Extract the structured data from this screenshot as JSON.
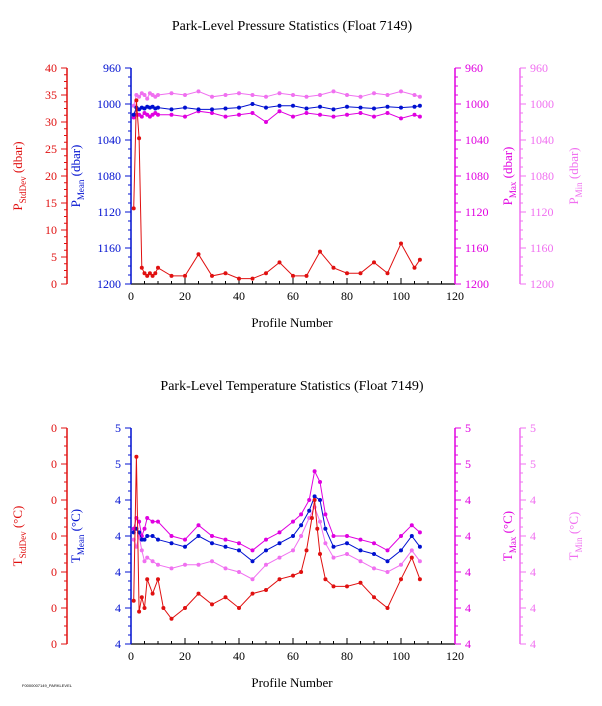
{
  "colors": {
    "stddev": "#e01010",
    "mean": "#0010d0",
    "max": "#e000e0",
    "min": "#f070f0",
    "axis": "#000000"
  },
  "footer": "F0000007149_PARKLEVEL",
  "chart_data": [
    {
      "type": "line",
      "title": "Park-Level Pressure Statistics (Float 7149)",
      "xlabel": "Profile Number",
      "xlim": [
        0,
        120
      ],
      "xticks": [
        "0",
        "20",
        "40",
        "60",
        "80",
        "100",
        "120"
      ],
      "axes": {
        "stddev": {
          "label_main": "P",
          "label_sub": "StdDev",
          "label_unit": " (dbar)",
          "lim": [
            0,
            40
          ],
          "ticks": [
            "0",
            "5",
            "10",
            "15",
            "20",
            "25",
            "30",
            "35",
            "40"
          ]
        },
        "mean": {
          "label_main": "P",
          "label_sub": "Mean",
          "label_unit": " (dbar)",
          "lim": [
            1200,
            960
          ],
          "ticks": [
            "1200",
            "1160",
            "1120",
            "1080",
            "1040",
            "1000",
            "960"
          ]
        },
        "max": {
          "label_main": "P",
          "label_sub": "Max",
          "label_unit": " (dbar)",
          "lim": [
            1200,
            960
          ],
          "ticks": [
            "1200",
            "1160",
            "1120",
            "1080",
            "1040",
            "1000",
            "960"
          ]
        },
        "min": {
          "label_main": "P",
          "label_sub": "Min",
          "label_unit": " (dbar)",
          "lim": [
            1200,
            960
          ],
          "ticks": [
            "1200",
            "1160",
            "1120",
            "1080",
            "1040",
            "1000",
            "960"
          ]
        }
      },
      "series": [
        {
          "key": "min",
          "x": [
            1,
            2,
            3,
            4,
            5,
            6,
            7,
            8,
            9,
            10,
            15,
            20,
            25,
            30,
            35,
            40,
            45,
            50,
            55,
            60,
            65,
            70,
            75,
            80,
            85,
            90,
            95,
            100,
            105,
            107
          ],
          "y": [
            1002,
            990,
            992,
            988,
            990,
            994,
            988,
            990,
            992,
            990,
            988,
            990,
            986,
            992,
            990,
            988,
            990,
            992,
            988,
            990,
            992,
            990,
            986,
            990,
            992,
            988,
            990,
            986,
            990,
            992
          ]
        },
        {
          "key": "max",
          "x": [
            1,
            2,
            3,
            4,
            5,
            6,
            7,
            8,
            9,
            10,
            15,
            20,
            25,
            30,
            35,
            40,
            45,
            50,
            55,
            60,
            65,
            70,
            75,
            80,
            85,
            90,
            95,
            100,
            105,
            107
          ],
          "y": [
            1015,
            1012,
            1012,
            1014,
            1010,
            1012,
            1014,
            1012,
            1010,
            1012,
            1012,
            1014,
            1008,
            1010,
            1014,
            1012,
            1010,
            1020,
            1008,
            1014,
            1010,
            1012,
            1014,
            1012,
            1010,
            1014,
            1010,
            1016,
            1012,
            1014
          ]
        },
        {
          "key": "mean",
          "x": [
            1,
            2,
            3,
            4,
            5,
            6,
            7,
            8,
            9,
            10,
            15,
            20,
            25,
            30,
            35,
            40,
            45,
            50,
            55,
            60,
            65,
            70,
            75,
            80,
            85,
            90,
            95,
            100,
            105,
            107
          ],
          "y": [
            1012,
            1004,
            1006,
            1004,
            1005,
            1003,
            1004,
            1003,
            1005,
            1004,
            1006,
            1004,
            1006,
            1006,
            1005,
            1004,
            1000,
            1004,
            1002,
            1002,
            1005,
            1003,
            1006,
            1003,
            1004,
            1005,
            1003,
            1004,
            1003,
            1002
          ]
        },
        {
          "key": "stddev",
          "x": [
            1,
            2,
            3,
            4,
            5,
            6,
            7,
            8,
            9,
            10,
            15,
            20,
            25,
            30,
            35,
            40,
            45,
            50,
            55,
            60,
            65,
            70,
            75,
            80,
            85,
            90,
            95,
            100,
            105,
            107
          ],
          "y": [
            14,
            34,
            27,
            3,
            2,
            1.5,
            2,
            1.5,
            2,
            3,
            1.5,
            1.5,
            5.5,
            1.5,
            2,
            1,
            1,
            2,
            4,
            1.5,
            1.5,
            6,
            3,
            2,
            2,
            4,
            2,
            7.5,
            3,
            4.5
          ]
        }
      ]
    },
    {
      "type": "line",
      "title": "Park-Level Temperature Statistics (Float 7149)",
      "xlabel": "Profile Number",
      "xlim": [
        0,
        120
      ],
      "xticks": [
        "0",
        "20",
        "40",
        "60",
        "80",
        "100",
        "120"
      ],
      "axes": {
        "stddev": {
          "label_main": "T",
          "label_sub": "StdDev",
          "label_unit": " (°C)",
          "lim": [
            0,
            6
          ],
          "ticks": [
            "0",
            "0",
            "0",
            "0",
            "0",
            "0",
            "0"
          ]
        },
        "mean": {
          "label_main": "T",
          "label_sub": "Mean",
          "label_unit": " (°C)",
          "lim": [
            0,
            6
          ],
          "ticks": [
            "4",
            "4",
            "4",
            "4",
            "4",
            "5",
            "5"
          ]
        },
        "max": {
          "label_main": "T",
          "label_sub": "Max",
          "label_unit": " (°C)",
          "lim": [
            0,
            6
          ],
          "ticks": [
            "4",
            "4",
            "4",
            "4",
            "4",
            "5",
            "5"
          ]
        },
        "min": {
          "label_main": "T",
          "label_sub": "Min",
          "label_unit": " (°C)",
          "lim": [
            0,
            6
          ],
          "ticks": [
            "4",
            "4",
            "4",
            "4",
            "4",
            "5",
            "5"
          ]
        }
      },
      "series": [
        {
          "key": "min",
          "x": [
            1,
            2,
            3,
            4,
            5,
            6,
            8,
            10,
            15,
            20,
            25,
            30,
            35,
            40,
            45,
            50,
            55,
            60,
            63,
            66,
            68,
            70,
            72,
            75,
            80,
            85,
            90,
            95,
            100,
            104,
            107
          ],
          "y": [
            2.9,
            2.7,
            3.0,
            2.6,
            2.3,
            2.4,
            2.3,
            2.2,
            2.1,
            2.2,
            2.2,
            2.3,
            2.1,
            2.0,
            1.8,
            2.2,
            2.4,
            2.6,
            3.0,
            3.5,
            3.8,
            3.4,
            2.8,
            2.4,
            2.5,
            2.3,
            2.1,
            2.0,
            2.2,
            2.6,
            2.3
          ]
        },
        {
          "key": "max",
          "x": [
            1,
            2,
            3,
            4,
            5,
            6,
            8,
            10,
            15,
            20,
            25,
            30,
            35,
            40,
            45,
            50,
            55,
            60,
            63,
            66,
            68,
            70,
            72,
            75,
            80,
            85,
            90,
            95,
            100,
            104,
            107
          ],
          "y": [
            3.2,
            3.5,
            3.4,
            3.0,
            3.2,
            3.5,
            3.4,
            3.4,
            3.0,
            2.9,
            3.3,
            3.0,
            2.9,
            2.8,
            2.6,
            2.9,
            3.1,
            3.4,
            3.6,
            4.0,
            4.8,
            4.5,
            3.6,
            3.0,
            3.0,
            2.9,
            2.8,
            2.6,
            3.0,
            3.3,
            3.1
          ]
        },
        {
          "key": "mean",
          "x": [
            1,
            2,
            3,
            4,
            5,
            6,
            8,
            10,
            15,
            20,
            25,
            30,
            35,
            40,
            45,
            50,
            55,
            60,
            63,
            66,
            68,
            70,
            72,
            75,
            80,
            85,
            90,
            95,
            100,
            104,
            107
          ],
          "y": [
            3.1,
            3.2,
            3.1,
            2.9,
            2.9,
            3.0,
            3.0,
            2.9,
            2.8,
            2.7,
            3.0,
            2.8,
            2.7,
            2.6,
            2.3,
            2.6,
            2.8,
            3.0,
            3.3,
            3.7,
            4.1,
            4.0,
            3.2,
            2.7,
            2.8,
            2.6,
            2.5,
            2.3,
            2.6,
            3.0,
            2.7
          ]
        },
        {
          "key": "stddev",
          "x": [
            1,
            2,
            3,
            4,
            5,
            6,
            8,
            10,
            12,
            15,
            20,
            25,
            30,
            35,
            40,
            45,
            50,
            55,
            60,
            63,
            65,
            67,
            68,
            69,
            70,
            72,
            75,
            80,
            85,
            90,
            95,
            100,
            104,
            107
          ],
          "y": [
            1.2,
            5.2,
            0.9,
            1.3,
            1.0,
            1.8,
            1.4,
            1.8,
            1.0,
            0.7,
            1.0,
            1.4,
            1.1,
            1.3,
            1.0,
            1.4,
            1.5,
            1.8,
            1.9,
            2.0,
            2.6,
            3.5,
            4.0,
            3.2,
            2.5,
            1.8,
            1.6,
            1.6,
            1.7,
            1.3,
            1.0,
            1.8,
            2.4,
            1.8
          ]
        }
      ]
    }
  ]
}
